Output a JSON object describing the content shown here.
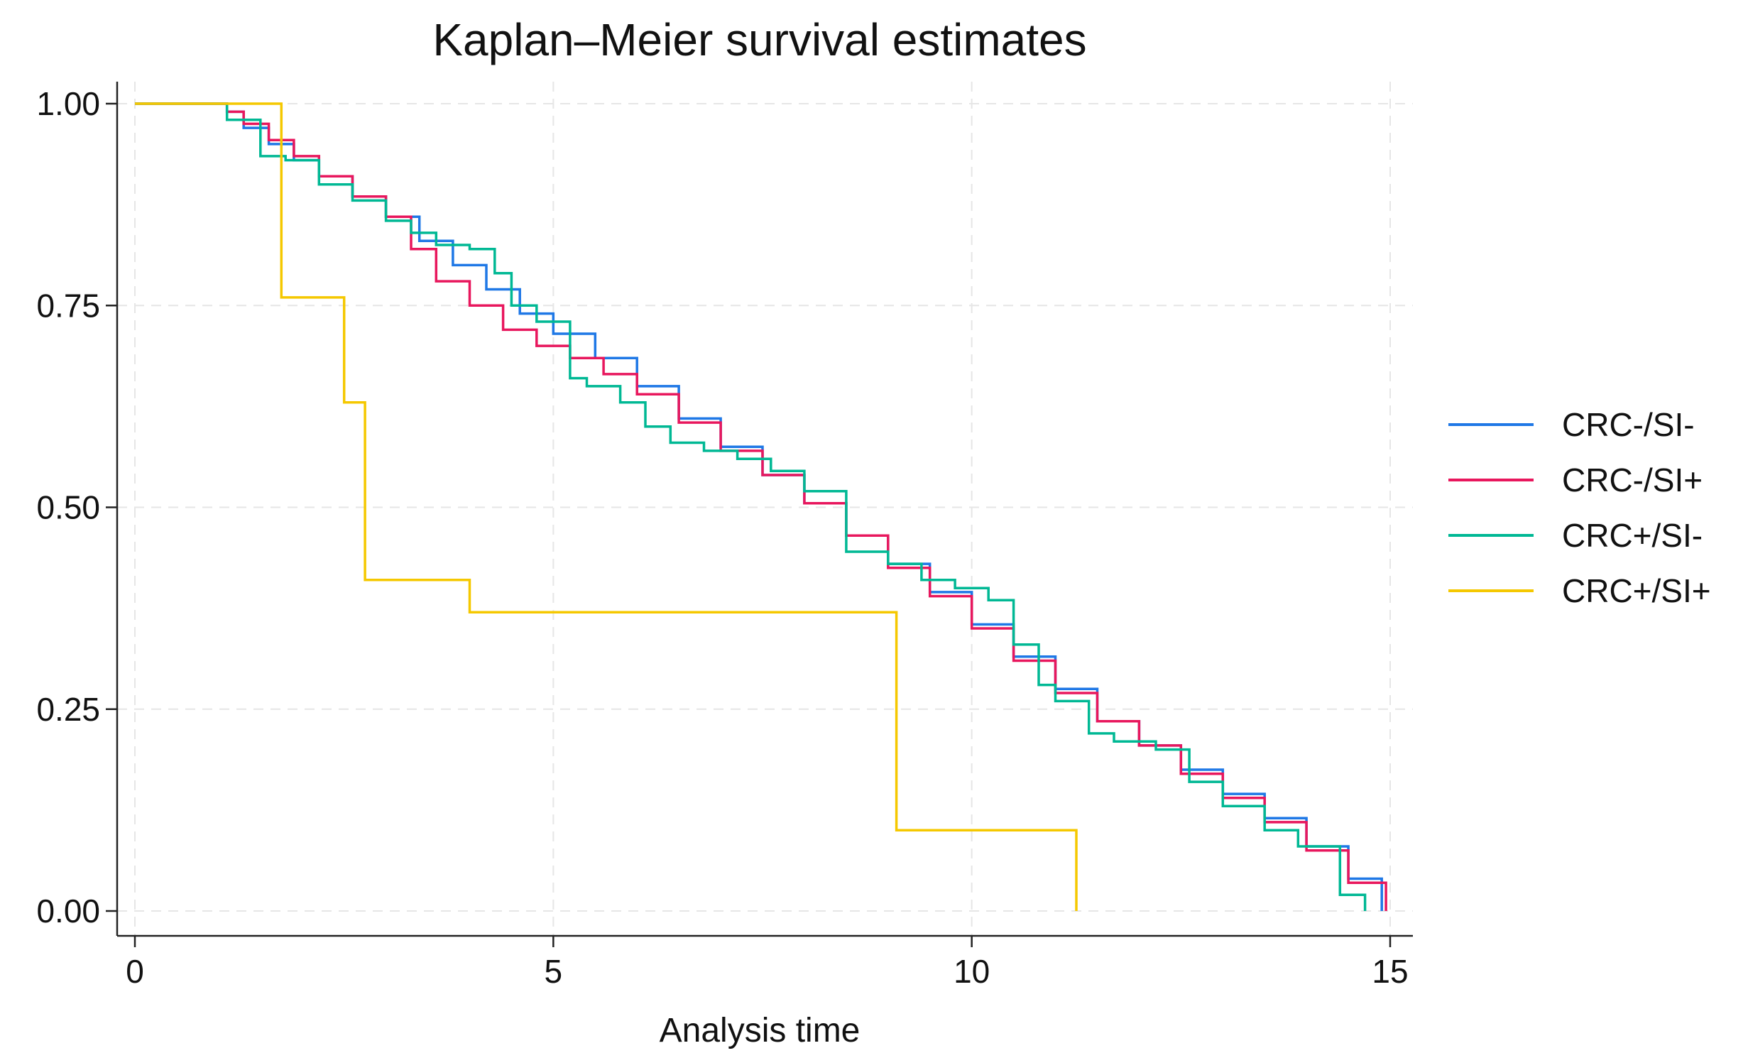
{
  "chart_data": {
    "type": "line",
    "title": "Kaplan–Meier survival estimates",
    "xlabel": "Analysis time",
    "ylabel": "",
    "xlim": [
      0,
      15
    ],
    "ylim": [
      0,
      1
    ],
    "x_ticks": [
      0,
      5,
      10,
      15
    ],
    "x_tick_labels": [
      "0",
      "5",
      "10",
      "15"
    ],
    "y_ticks": [
      0,
      0.25,
      0.5,
      0.75,
      1
    ],
    "y_tick_labels": [
      "0.00",
      "0.25",
      "0.50",
      "0.75",
      "1.00"
    ],
    "grid": true,
    "legend_position": "right",
    "series": [
      {
        "name": "CRC-/SI-",
        "color": "#1f78e6",
        "step": true,
        "x": [
          0,
          1.1,
          1.3,
          1.6,
          1.9,
          2.2,
          2.6,
          3.0,
          3.4,
          3.8,
          4.2,
          4.6,
          5.0,
          5.5,
          6.0,
          6.5,
          7.0,
          7.5,
          8.0,
          8.5,
          9.0,
          9.5,
          10.0,
          10.5,
          11.0,
          11.5,
          12.0,
          12.5,
          13.0,
          13.5,
          14.0,
          14.5,
          14.9
        ],
        "y": [
          1.0,
          0.99,
          0.97,
          0.95,
          0.93,
          0.91,
          0.885,
          0.86,
          0.83,
          0.8,
          0.77,
          0.74,
          0.715,
          0.685,
          0.65,
          0.61,
          0.575,
          0.54,
          0.505,
          0.465,
          0.43,
          0.395,
          0.355,
          0.315,
          0.275,
          0.235,
          0.205,
          0.175,
          0.145,
          0.115,
          0.08,
          0.04,
          0.0
        ]
      },
      {
        "name": "CRC-/SI+",
        "color": "#e8175d",
        "step": true,
        "x": [
          0,
          1.1,
          1.3,
          1.6,
          1.9,
          2.2,
          2.6,
          3.0,
          3.3,
          3.6,
          4.0,
          4.4,
          4.8,
          5.2,
          5.6,
          6.0,
          6.5,
          7.0,
          7.5,
          8.0,
          8.5,
          9.0,
          9.5,
          10.0,
          10.5,
          11.0,
          11.5,
          12.0,
          12.5,
          13.0,
          13.5,
          14.0,
          14.5,
          14.95
        ],
        "y": [
          1.0,
          0.99,
          0.975,
          0.955,
          0.935,
          0.91,
          0.885,
          0.86,
          0.82,
          0.78,
          0.75,
          0.72,
          0.7,
          0.685,
          0.665,
          0.64,
          0.605,
          0.57,
          0.54,
          0.505,
          0.465,
          0.425,
          0.39,
          0.35,
          0.31,
          0.27,
          0.235,
          0.205,
          0.17,
          0.14,
          0.11,
          0.075,
          0.035,
          0.0
        ]
      },
      {
        "name": "CRC+/SI-",
        "color": "#00b894",
        "step": true,
        "x": [
          0,
          1.1,
          1.5,
          1.8,
          2.2,
          2.6,
          3.0,
          3.3,
          3.6,
          4.0,
          4.3,
          4.5,
          4.8,
          5.2,
          5.4,
          5.8,
          6.1,
          6.4,
          6.8,
          7.2,
          7.6,
          8.0,
          8.5,
          9.0,
          9.4,
          9.8,
          10.2,
          10.5,
          10.8,
          11.0,
          11.4,
          11.7,
          12.2,
          12.6,
          13.0,
          13.5,
          13.9,
          14.4,
          14.7
        ],
        "y": [
          1.0,
          0.98,
          0.935,
          0.93,
          0.9,
          0.88,
          0.855,
          0.84,
          0.825,
          0.82,
          0.79,
          0.75,
          0.73,
          0.66,
          0.65,
          0.63,
          0.6,
          0.58,
          0.57,
          0.56,
          0.545,
          0.52,
          0.445,
          0.43,
          0.41,
          0.4,
          0.385,
          0.33,
          0.28,
          0.26,
          0.22,
          0.21,
          0.2,
          0.16,
          0.13,
          0.1,
          0.08,
          0.02,
          0.0
        ]
      },
      {
        "name": "CRC+/SI+",
        "color": "#f5c800",
        "step": true,
        "x": [
          0,
          1.75,
          2.5,
          2.75,
          4.0,
          9.1,
          11.25
        ],
        "y": [
          1.0,
          0.76,
          0.63,
          0.41,
          0.37,
          0.1,
          0.0
        ]
      }
    ]
  }
}
